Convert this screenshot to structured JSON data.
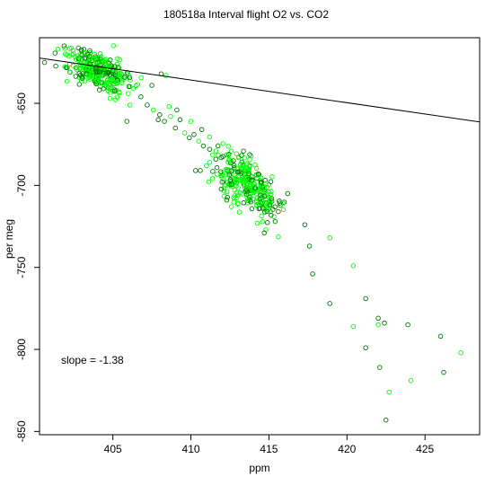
{
  "chart_data": {
    "type": "scatter",
    "title": "180518a   Interval flight O2 vs. CO2",
    "xlabel": "ppm",
    "ylabel": "per meg",
    "xlim": [
      400.3,
      428.5
    ],
    "ylim": [
      -852,
      -610
    ],
    "x_ticks": [
      405,
      410,
      415,
      420,
      425
    ],
    "y_ticks": [
      -650,
      -700,
      -750,
      -800,
      -850
    ],
    "x_tick_labels": [
      "405",
      "410",
      "415",
      "420",
      "425"
    ],
    "y_tick_labels": [
      "-650",
      "-700",
      "-750",
      "-800",
      "-850"
    ],
    "annotation": "slope =  -1.38",
    "fit_line": {
      "slope": -1.38,
      "intercept": -70.0
    },
    "marker_colors": {
      "light": "#00ff00",
      "dark": "#007700"
    },
    "grid": false,
    "clusters": [
      {
        "cx": 404.0,
        "cy": -630,
        "sx": 1.0,
        "sy": 6,
        "n": 320,
        "corr": -0.55
      },
      {
        "cx": 413.6,
        "cy": -700,
        "sx": 1.0,
        "sy": 10,
        "n": 300,
        "corr": -0.6
      }
    ],
    "series": [
      {
        "values": [
          [
            406.3,
            -641
          ],
          [
            406.8,
            -646
          ],
          [
            407.2,
            -651
          ],
          [
            407.6,
            -654
          ],
          [
            408.0,
            -657
          ],
          [
            408.3,
            -661
          ],
          [
            408.7,
            -658
          ],
          [
            409.0,
            -665
          ],
          [
            409.3,
            -660
          ],
          [
            409.6,
            -668
          ],
          [
            409.9,
            -671
          ],
          [
            410.2,
            -669
          ],
          [
            410.5,
            -673
          ],
          [
            410.8,
            -676
          ],
          [
            411.2,
            -678
          ],
          [
            408.6,
            -652
          ],
          [
            409.1,
            -654
          ],
          [
            407.9,
            -660
          ],
          [
            410.0,
            -661
          ],
          [
            410.7,
            -666
          ],
          [
            408.1,
            -632
          ],
          [
            408.4,
            -633
          ],
          [
            407.5,
            -639
          ],
          [
            405.9,
            -661
          ],
          [
            406.1,
            -651
          ],
          [
            410.3,
            -691
          ],
          [
            410.6,
            -691
          ],
          [
            411.0,
            -688
          ],
          [
            411.6,
            -684
          ],
          [
            415.6,
            -716
          ],
          [
            415.9,
            -711
          ],
          [
            416.2,
            -705
          ],
          [
            415.4,
            -722
          ],
          [
            414.8,
            -727
          ],
          [
            414.7,
            -729
          ],
          [
            412.3,
            -709
          ],
          [
            412.6,
            -713
          ],
          [
            412.0,
            -698
          ],
          [
            417.3,
            -724
          ],
          [
            418.9,
            -732
          ],
          [
            417.6,
            -737
          ],
          [
            417.8,
            -754
          ],
          [
            420.4,
            -749
          ],
          [
            418.9,
            -772
          ],
          [
            421.2,
            -769
          ],
          [
            420.4,
            -786
          ],
          [
            421.2,
            -799
          ],
          [
            422.0,
            -781
          ],
          [
            422.0,
            -785
          ],
          [
            422.4,
            -784
          ],
          [
            422.1,
            -811
          ],
          [
            422.7,
            -826
          ],
          [
            422.5,
            -843
          ],
          [
            423.9,
            -785
          ],
          [
            424.1,
            -819
          ],
          [
            426.0,
            -792
          ],
          [
            426.2,
            -814
          ],
          [
            427.3,
            -802
          ]
        ]
      }
    ]
  }
}
